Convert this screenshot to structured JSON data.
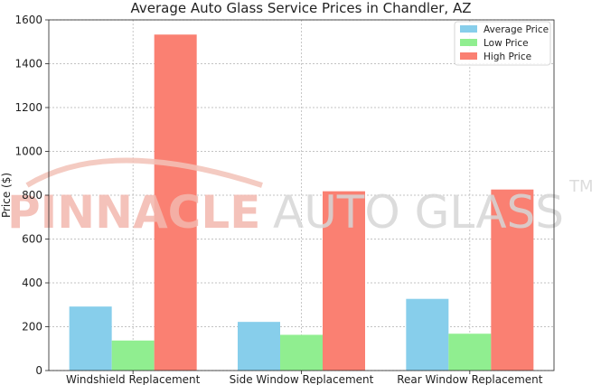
{
  "chart_data": {
    "type": "bar",
    "title": "Average Auto Glass Service Prices in Chandler, AZ",
    "xlabel": "",
    "ylabel": "Price ($)",
    "ylim": [
      0,
      1600
    ],
    "yticks": [
      "0",
      "200",
      "400",
      "600",
      "800",
      "1000",
      "1200",
      "1400",
      "1600"
    ],
    "grid": true,
    "legend_position": "top-right",
    "categories": [
      "Windshield Replacement",
      "Side Window Replacement",
      "Rear Window Replacement"
    ],
    "series": [
      {
        "name": "Average Price",
        "color": "#87ceeb",
        "values": [
          292,
          222,
          327
        ]
      },
      {
        "name": "Low Price",
        "color": "#90ee90",
        "values": [
          137,
          163,
          168
        ]
      },
      {
        "name": "High Price",
        "color": "#fa8072",
        "values": [
          1533,
          818,
          826
        ]
      }
    ]
  },
  "watermark": {
    "brand": "PINNACLE",
    "rest": "AUTO GLASS",
    "tm": "TM"
  }
}
